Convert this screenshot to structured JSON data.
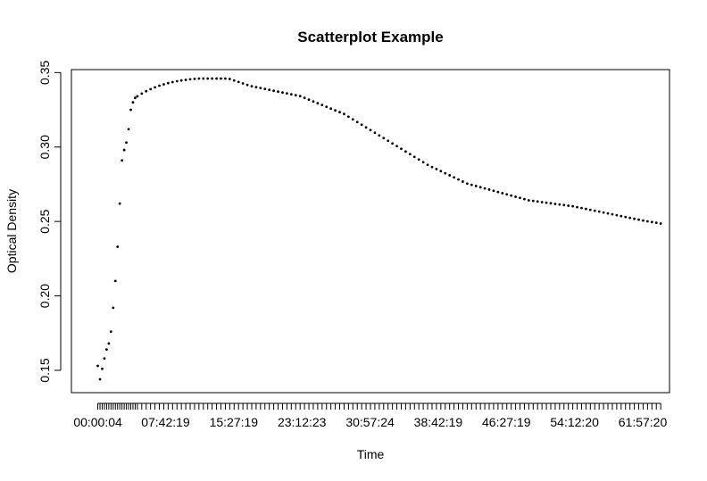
{
  "chart_data": {
    "type": "scatter",
    "title": "Scatterplot Example",
    "xlabel": "Time",
    "ylabel": "Optical Density",
    "y_ticks": [
      "0.15",
      "0.20",
      "0.25",
      "0.30",
      "0.35"
    ],
    "ylim": [
      0.135,
      0.352
    ],
    "x_tick_labels": [
      "00:00:04",
      "07:42:19",
      "15:27:19",
      "23:12:23",
      "30:57:24",
      "38:42:19",
      "46:27:19",
      "54:12:20",
      "61:57:20"
    ],
    "x_unit": "hours",
    "x_ticks_hours": [
      0.0011,
      7.7053,
      15.4553,
      23.2064,
      30.9567,
      38.7053,
      46.4553,
      54.2056,
      61.9556
    ],
    "xlim": [
      -3.0,
      65.0
    ],
    "marker_color": "#000000",
    "points": [
      [
        0.0,
        0.153
      ],
      [
        0.25,
        0.144
      ],
      [
        0.5,
        0.151
      ],
      [
        0.75,
        0.158
      ],
      [
        1.0,
        0.164
      ],
      [
        1.25,
        0.168
      ],
      [
        1.5,
        0.176
      ],
      [
        1.75,
        0.192
      ],
      [
        2.0,
        0.21
      ],
      [
        2.25,
        0.233
      ],
      [
        2.5,
        0.262
      ],
      [
        2.75,
        0.291
      ],
      [
        3.0,
        0.298
      ],
      [
        3.25,
        0.303
      ],
      [
        3.5,
        0.312
      ],
      [
        3.75,
        0.325
      ],
      [
        4.0,
        0.33
      ],
      [
        4.25,
        0.333
      ],
      [
        4.5,
        0.3341
      ],
      [
        5.0,
        0.3359
      ],
      [
        5.5,
        0.3375
      ],
      [
        6.0,
        0.3389
      ],
      [
        6.5,
        0.3401
      ],
      [
        7.0,
        0.3412
      ],
      [
        7.5,
        0.3421
      ],
      [
        8.0,
        0.3429
      ],
      [
        8.5,
        0.3436
      ],
      [
        9.0,
        0.3442
      ],
      [
        9.5,
        0.3447
      ],
      [
        10.0,
        0.3451
      ],
      [
        10.5,
        0.3455
      ],
      [
        11.0,
        0.3458
      ],
      [
        11.5,
        0.346
      ],
      [
        12.0,
        0.346
      ],
      [
        12.5,
        0.346
      ],
      [
        13.0,
        0.346
      ],
      [
        13.5,
        0.346
      ],
      [
        14.0,
        0.346
      ],
      [
        14.5,
        0.346
      ],
      [
        15.0,
        0.3457
      ],
      [
        15.5,
        0.3447
      ],
      [
        16.0,
        0.3437
      ],
      [
        16.5,
        0.3427
      ],
      [
        17.0,
        0.3417
      ],
      [
        17.5,
        0.3408
      ],
      [
        18.0,
        0.3402
      ],
      [
        18.5,
        0.3396
      ],
      [
        19.0,
        0.339
      ],
      [
        19.5,
        0.3384
      ],
      [
        20.0,
        0.3378
      ],
      [
        20.5,
        0.3372
      ],
      [
        21.0,
        0.3366
      ],
      [
        21.5,
        0.336
      ],
      [
        22.0,
        0.3354
      ],
      [
        22.5,
        0.3348
      ],
      [
        23.0,
        0.3342
      ],
      [
        23.5,
        0.333
      ],
      [
        24.0,
        0.3318
      ],
      [
        24.5,
        0.3306
      ],
      [
        25.0,
        0.3294
      ],
      [
        25.5,
        0.3282
      ],
      [
        26.0,
        0.327
      ],
      [
        26.5,
        0.3258
      ],
      [
        27.0,
        0.3246
      ],
      [
        27.5,
        0.3234
      ],
      [
        28.0,
        0.3222
      ],
      [
        28.5,
        0.3204
      ],
      [
        29.0,
        0.3186
      ],
      [
        29.5,
        0.3168
      ],
      [
        30.0,
        0.315
      ],
      [
        30.5,
        0.3132
      ],
      [
        31.0,
        0.3114
      ],
      [
        31.5,
        0.3096
      ],
      [
        32.0,
        0.3078
      ],
      [
        32.5,
        0.306
      ],
      [
        33.0,
        0.3042
      ],
      [
        33.5,
        0.3024
      ],
      [
        34.0,
        0.3006
      ],
      [
        34.5,
        0.2988
      ],
      [
        35.0,
        0.297
      ],
      [
        35.5,
        0.2952
      ],
      [
        36.0,
        0.2934
      ],
      [
        36.5,
        0.2916
      ],
      [
        37.0,
        0.2898
      ],
      [
        37.5,
        0.288
      ],
      [
        38.0,
        0.2866
      ],
      [
        38.5,
        0.2852
      ],
      [
        39.0,
        0.2838
      ],
      [
        39.5,
        0.2824
      ],
      [
        40.0,
        0.281
      ],
      [
        40.5,
        0.2796
      ],
      [
        41.0,
        0.2782
      ],
      [
        41.5,
        0.2768
      ],
      [
        42.0,
        0.2754
      ],
      [
        42.5,
        0.2746
      ],
      [
        43.0,
        0.2738
      ],
      [
        43.5,
        0.273
      ],
      [
        44.0,
        0.2722
      ],
      [
        44.5,
        0.2714
      ],
      [
        45.0,
        0.2706
      ],
      [
        45.5,
        0.2698
      ],
      [
        46.0,
        0.269
      ],
      [
        46.5,
        0.2682
      ],
      [
        47.0,
        0.2674
      ],
      [
        47.5,
        0.2666
      ],
      [
        48.0,
        0.2658
      ],
      [
        48.5,
        0.265
      ],
      [
        49.0,
        0.2642
      ],
      [
        49.5,
        0.2638
      ],
      [
        50.0,
        0.2634
      ],
      [
        50.5,
        0.263
      ],
      [
        51.0,
        0.2626
      ],
      [
        51.5,
        0.2622
      ],
      [
        52.0,
        0.2618
      ],
      [
        52.5,
        0.2614
      ],
      [
        53.0,
        0.261
      ],
      [
        53.5,
        0.2606
      ],
      [
        54.0,
        0.2602
      ],
      [
        54.5,
        0.2596
      ],
      [
        55.0,
        0.259
      ],
      [
        55.5,
        0.2584
      ],
      [
        56.0,
        0.2578
      ],
      [
        56.5,
        0.2572
      ],
      [
        57.0,
        0.2566
      ],
      [
        57.5,
        0.256
      ],
      [
        58.0,
        0.2554
      ],
      [
        58.5,
        0.2548
      ],
      [
        59.0,
        0.2542
      ],
      [
        59.5,
        0.2536
      ],
      [
        60.0,
        0.253
      ],
      [
        60.5,
        0.2524
      ],
      [
        61.0,
        0.2518
      ],
      [
        61.5,
        0.2512
      ],
      [
        62.0,
        0.2506
      ],
      [
        62.5,
        0.2501
      ],
      [
        63.0,
        0.2496
      ],
      [
        63.5,
        0.2491
      ],
      [
        64.0,
        0.2486
      ]
    ]
  }
}
